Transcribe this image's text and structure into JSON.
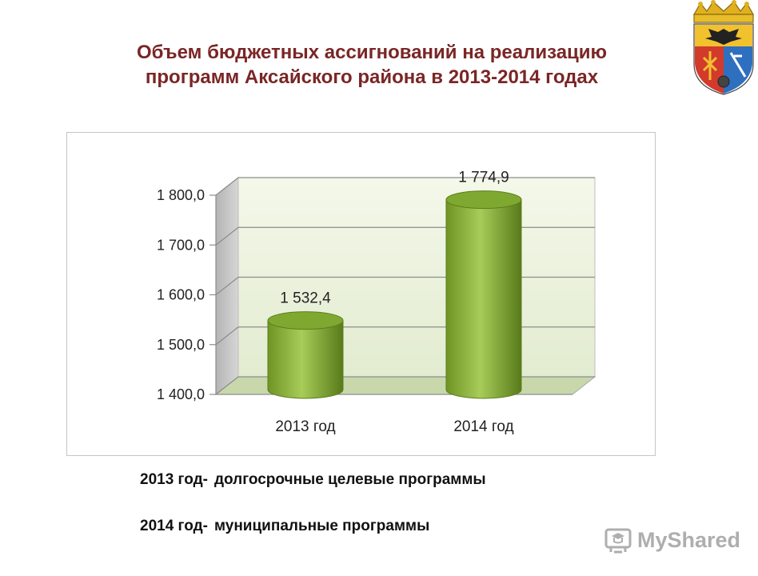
{
  "title": {
    "line1": "Объем бюджетных ассигнований на реализацию",
    "line2": "программ  Аксайского района в 2013-2014 годах"
  },
  "chart_data": {
    "type": "bar",
    "style": "3d-cylinder",
    "categories": [
      "2013 год",
      "2014 год"
    ],
    "values": [
      1532.4,
      1774.9
    ],
    "data_labels": [
      "1 532,4",
      "1 774,9"
    ],
    "y_ticks": [
      1400,
      1500,
      1600,
      1700,
      1800
    ],
    "y_tick_labels": [
      "1 400,0",
      "1 500,0",
      "1 600,0",
      "1 700,0",
      "1 800,0"
    ],
    "ylim": [
      1400,
      1800
    ],
    "grid": true,
    "legend": "none",
    "bar_color": "#8cb43a",
    "back_wall_color": "#eef5df",
    "floor_color": "#c9d8ab"
  },
  "notes": [
    {
      "year": "2013 год-",
      "text": "долгосрочные целевые программы"
    },
    {
      "year": "2014 год-",
      "text": "муниципальные программы"
    }
  ],
  "watermark": {
    "text": "MyShared",
    "icon": "mortarboard-icon"
  },
  "emblem": {
    "icon": "coat-of-arms-icon"
  }
}
